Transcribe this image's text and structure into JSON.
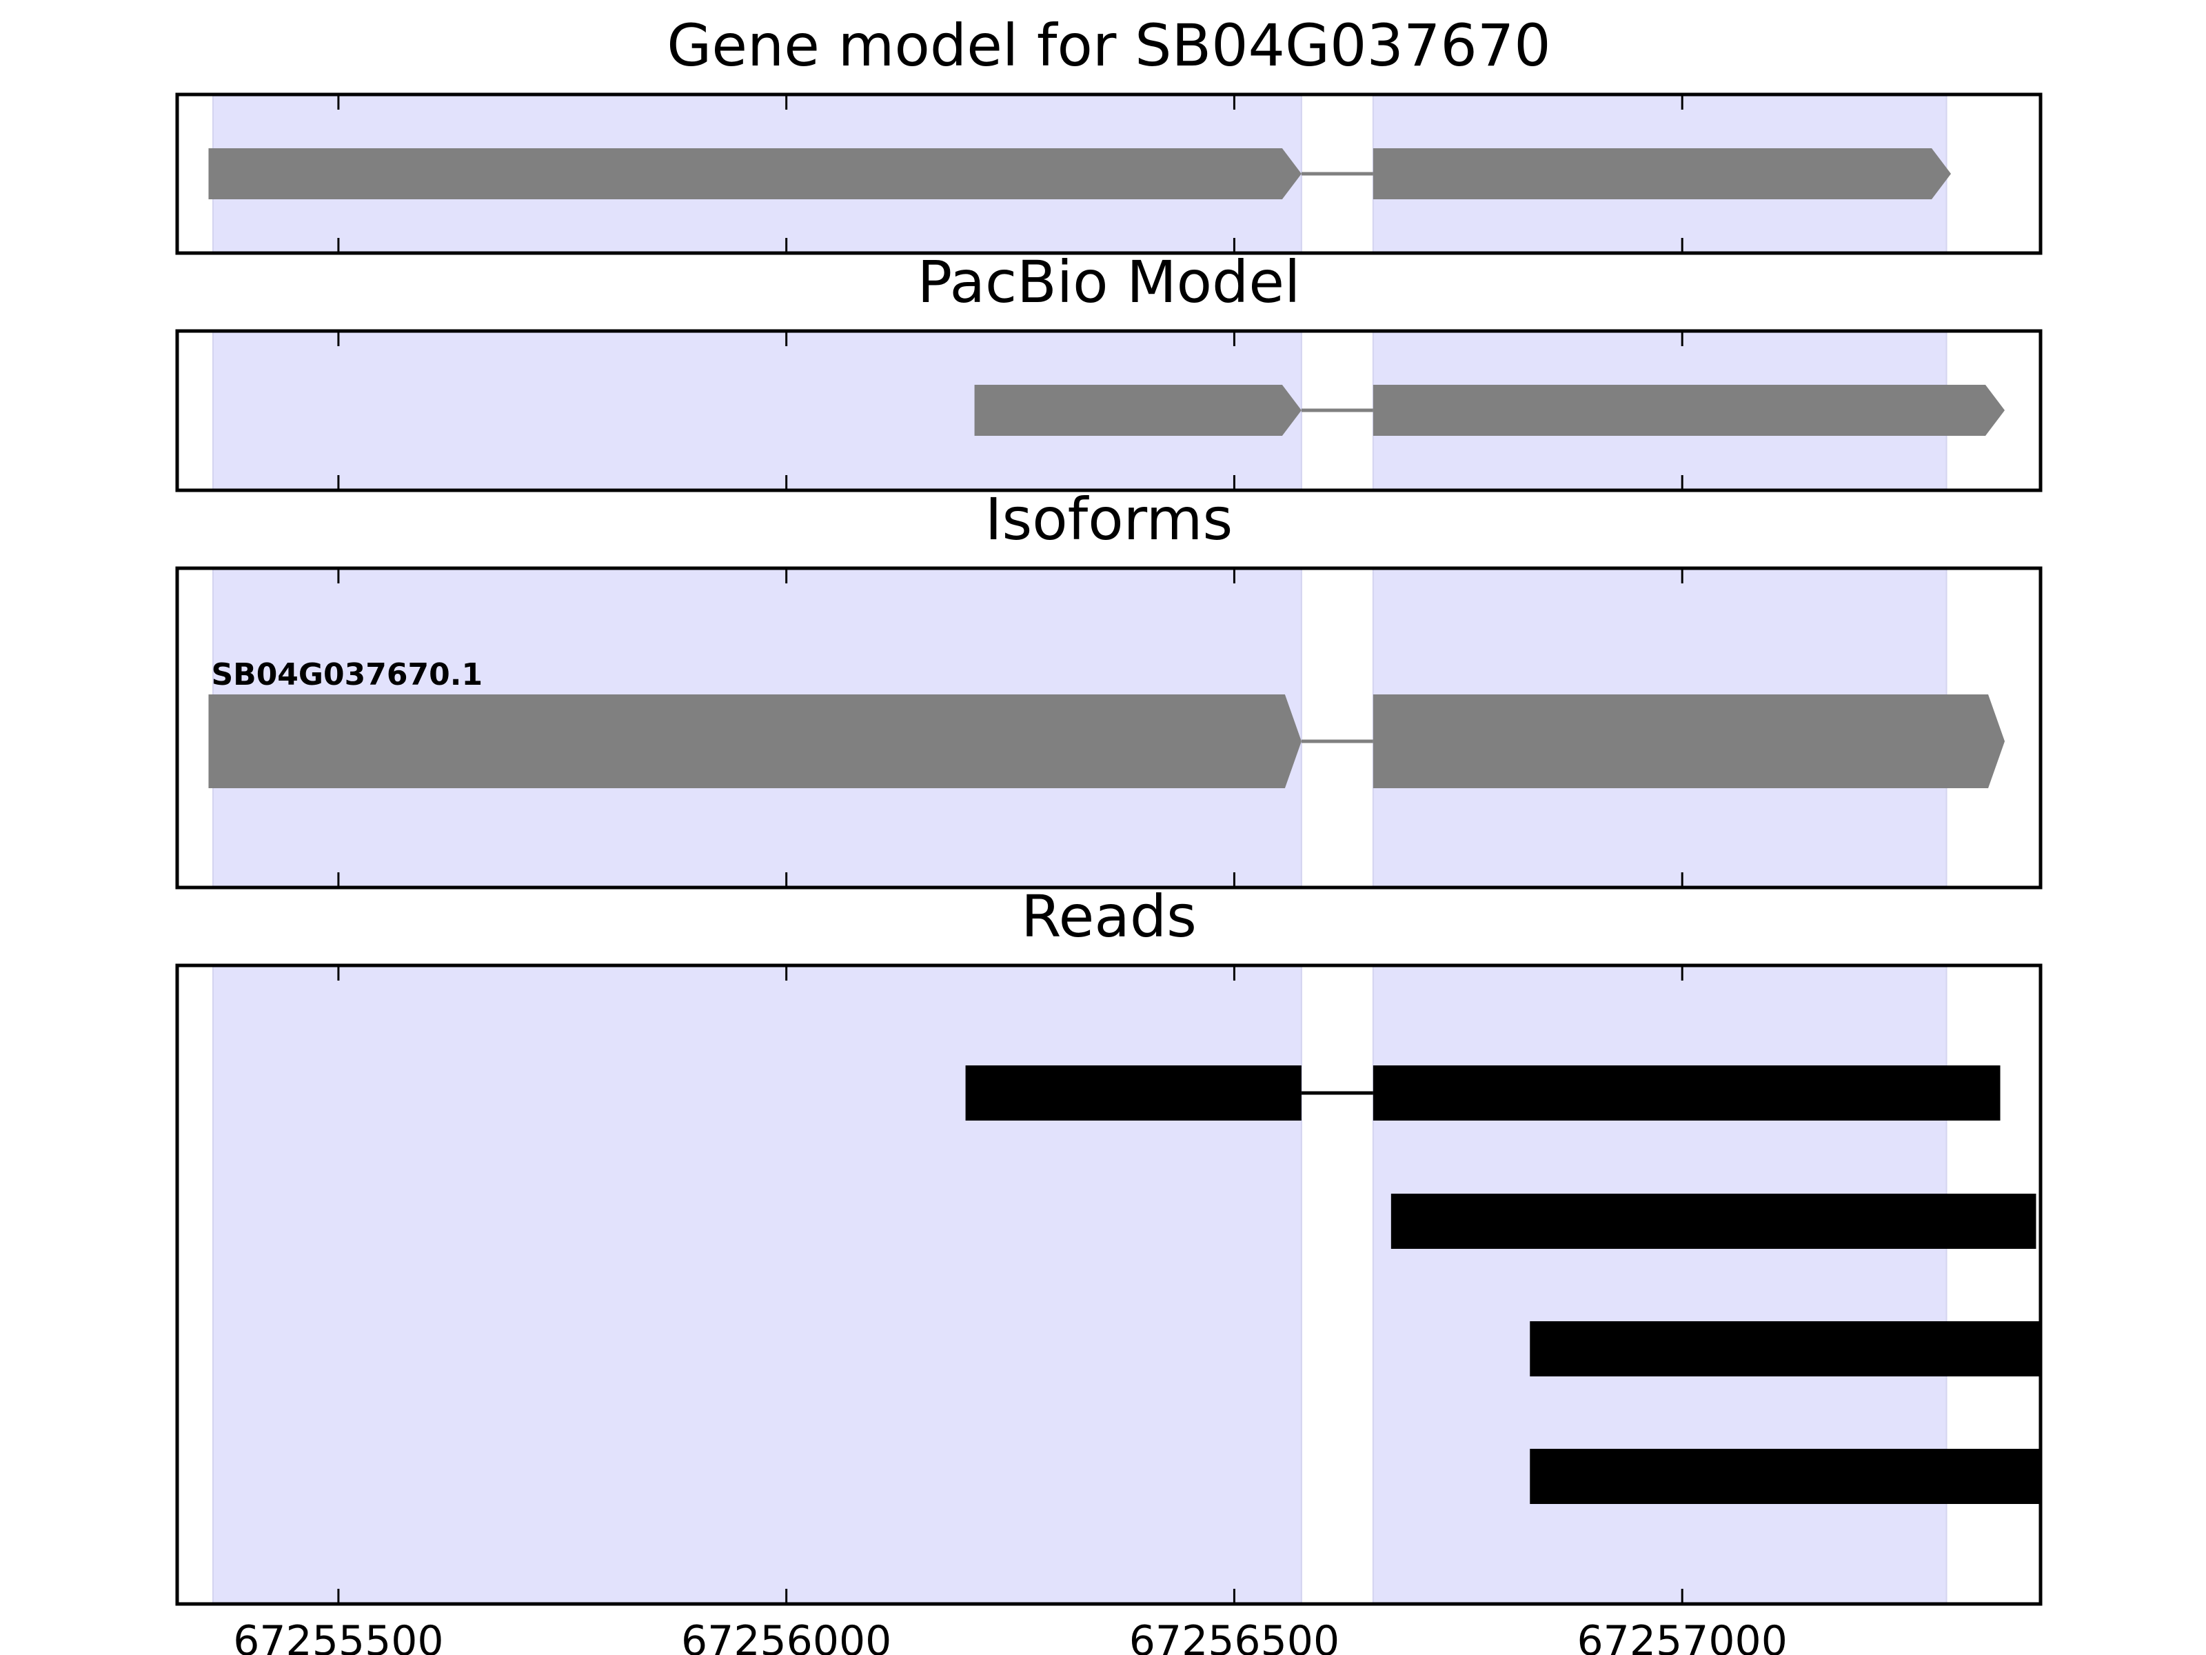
{
  "chart_data": {
    "type": "gene-track",
    "x_ticks": [
      67255500,
      67256000,
      67256500,
      67257000
    ],
    "xlim": [
      67255320,
      67257400
    ],
    "shaded_exons": [
      [
        67255360,
        67256575
      ],
      [
        67256655,
        67257295
      ]
    ],
    "panels": [
      {
        "title": "Gene model for SB04G037670",
        "tracks": [
          {
            "label": "",
            "color": "#808080",
            "style": "arrow",
            "exons": [
              [
                67255355,
                67256575
              ],
              [
                67256655,
                67257300
              ]
            ]
          }
        ]
      },
      {
        "title": "PacBio Model",
        "tracks": [
          {
            "label": "",
            "color": "#808080",
            "style": "arrow",
            "exons": [
              [
                67256210,
                67256575
              ],
              [
                67256655,
                67257360
              ]
            ]
          }
        ]
      },
      {
        "title": "Isoforms",
        "tracks": [
          {
            "label": "SB04G037670.1",
            "color": "#808080",
            "style": "arrow",
            "exons": [
              [
                67255355,
                67256575
              ],
              [
                67256655,
                67257360
              ]
            ]
          }
        ]
      },
      {
        "title": "Reads",
        "tracks": [
          {
            "label": "",
            "color": "#000000",
            "style": "bar",
            "exons": [
              [
                67256200,
                67256575
              ],
              [
                67256655,
                67257355
              ]
            ]
          },
          {
            "label": "",
            "color": "#000000",
            "style": "bar",
            "exons": [
              [
                67256675,
                67257395
              ]
            ]
          },
          {
            "label": "",
            "color": "#000000",
            "style": "bar",
            "exons": [
              [
                67256830,
                67257400
              ]
            ]
          },
          {
            "label": "",
            "color": "#000000",
            "style": "bar",
            "exons": [
              [
                67256830,
                67257400
              ]
            ]
          }
        ]
      }
    ],
    "shade_color": "#e2e2fc",
    "grid": false,
    "legend": "none"
  }
}
